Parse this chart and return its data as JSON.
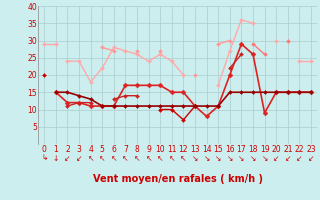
{
  "x": [
    0,
    1,
    2,
    3,
    4,
    5,
    6,
    7,
    8,
    9,
    10,
    11,
    12,
    13,
    14,
    15,
    16,
    17,
    18,
    19,
    20,
    21,
    22,
    23
  ],
  "lines": [
    {
      "color": "#ffaaaa",
      "lw": 1.0,
      "marker": "D",
      "ms": 2.0,
      "values": [
        29,
        29,
        null,
        null,
        null,
        null,
        null,
        null,
        null,
        null,
        null,
        null,
        null,
        null,
        null,
        null,
        null,
        null,
        null,
        null,
        null,
        null,
        null,
        null
      ]
    },
    {
      "color": "#ffaaaa",
      "lw": 1.0,
      "marker": "D",
      "ms": 2.0,
      "values": [
        null,
        null,
        24,
        24,
        18,
        22,
        28,
        27,
        26,
        24,
        26,
        24,
        20,
        null,
        null,
        17,
        27,
        36,
        35,
        null,
        30,
        null,
        24,
        24
      ]
    },
    {
      "color": "#ff9999",
      "lw": 1.0,
      "marker": "D",
      "ms": 2.0,
      "values": [
        null,
        null,
        null,
        null,
        null,
        28,
        27,
        null,
        27,
        null,
        27,
        null,
        null,
        20,
        null,
        29,
        30,
        null,
        null,
        null,
        null,
        null,
        null,
        null
      ]
    },
    {
      "color": "#ff7777",
      "lw": 1.0,
      "marker": "D",
      "ms": 2.0,
      "values": [
        null,
        null,
        null,
        null,
        null,
        null,
        null,
        null,
        null,
        null,
        null,
        null,
        null,
        null,
        null,
        null,
        null,
        null,
        29,
        26,
        null,
        30,
        null,
        null
      ]
    },
    {
      "color": "#dd2222",
      "lw": 1.2,
      "marker": "D",
      "ms": 2.5,
      "values": [
        null,
        15,
        12,
        12,
        11,
        11,
        11,
        17,
        17,
        17,
        17,
        15,
        15,
        11,
        8,
        11,
        20,
        29,
        26,
        9,
        15,
        15,
        15,
        15
      ]
    },
    {
      "color": "#cc2222",
      "lw": 1.0,
      "marker": "D",
      "ms": 2.0,
      "values": [
        null,
        null,
        11,
        12,
        12,
        null,
        13,
        14,
        14,
        null,
        null,
        null,
        null,
        null,
        null,
        null,
        22,
        26,
        null,
        null,
        null,
        null,
        null,
        null
      ]
    },
    {
      "color": "#cc0000",
      "lw": 1.0,
      "marker": "D",
      "ms": 2.0,
      "values": [
        20,
        null,
        null,
        null,
        null,
        null,
        null,
        null,
        null,
        null,
        null,
        null,
        null,
        null,
        null,
        null,
        null,
        null,
        null,
        null,
        null,
        null,
        null,
        null
      ]
    },
    {
      "color": "#cc0000",
      "lw": 1.0,
      "marker": "D",
      "ms": 2.0,
      "values": [
        null,
        null,
        null,
        null,
        null,
        null,
        null,
        null,
        null,
        null,
        10,
        10,
        7,
        11,
        null,
        11,
        null,
        null,
        null,
        null,
        null,
        null,
        null,
        null
      ]
    },
    {
      "color": "#990000",
      "lw": 1.2,
      "marker": "D",
      "ms": 2.0,
      "values": [
        null,
        15,
        15,
        14,
        13,
        11,
        11,
        11,
        11,
        11,
        11,
        11,
        11,
        11,
        11,
        11,
        15,
        15,
        15,
        15,
        15,
        15,
        15,
        15
      ]
    }
  ],
  "wind_arrows": [
    "↳",
    "↓",
    "↙",
    "↙",
    "↖",
    "↖",
    "↖",
    "↖",
    "↖",
    "↖",
    "↖",
    "↖",
    "↖",
    "↘",
    "↘",
    "↘",
    "↘",
    "↘",
    "↘",
    "↘",
    "↙",
    "↙",
    "↙",
    "↙"
  ],
  "xlabel": "Vent moyen/en rafales ( km/h )",
  "xlim_left": -0.5,
  "xlim_right": 23.5,
  "ylim": [
    0,
    40
  ],
  "yticks": [
    5,
    10,
    15,
    20,
    25,
    30,
    35,
    40
  ],
  "xticks": [
    0,
    1,
    2,
    3,
    4,
    5,
    6,
    7,
    8,
    9,
    10,
    11,
    12,
    13,
    14,
    15,
    16,
    17,
    18,
    19,
    20,
    21,
    22,
    23
  ],
  "bg_color": "#cceeee",
  "grid_color": "#aacccc",
  "xlabel_color": "#cc0000",
  "xlabel_fontsize": 7,
  "tick_color": "#cc0000",
  "tick_fontsize": 5.5,
  "arrow_fontsize": 5.5,
  "arrow_color": "#cc0000"
}
